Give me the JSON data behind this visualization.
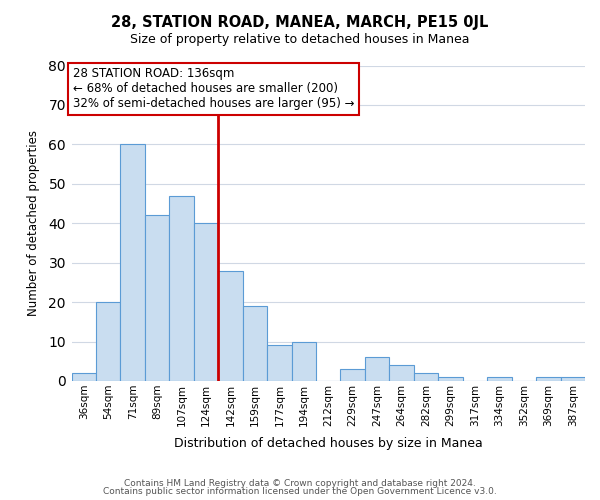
{
  "title": "28, STATION ROAD, MANEA, MARCH, PE15 0JL",
  "subtitle": "Size of property relative to detached houses in Manea",
  "xlabel": "Distribution of detached houses by size in Manea",
  "ylabel": "Number of detached properties",
  "bar_labels": [
    "36sqm",
    "54sqm",
    "71sqm",
    "89sqm",
    "107sqm",
    "124sqm",
    "142sqm",
    "159sqm",
    "177sqm",
    "194sqm",
    "212sqm",
    "229sqm",
    "247sqm",
    "264sqm",
    "282sqm",
    "299sqm",
    "317sqm",
    "334sqm",
    "352sqm",
    "369sqm",
    "387sqm"
  ],
  "bar_values": [
    2,
    20,
    60,
    42,
    47,
    40,
    28,
    19,
    9,
    10,
    0,
    3,
    6,
    4,
    2,
    1,
    0,
    1,
    0,
    1,
    1
  ],
  "bar_color": "#c9ddf0",
  "bar_edge_color": "#5b9bd5",
  "vline_color": "#cc0000",
  "annotation_line0": "28 STATION ROAD: 136sqm",
  "annotation_line1": "← 68% of detached houses are smaller (200)",
  "annotation_line2": "32% of semi-detached houses are larger (95) →",
  "annotation_box_color": "#ffffff",
  "annotation_box_edge": "#cc0000",
  "ylim": [
    0,
    80
  ],
  "yticks": [
    0,
    10,
    20,
    30,
    40,
    50,
    60,
    70,
    80
  ],
  "footer_line1": "Contains HM Land Registry data © Crown copyright and database right 2024.",
  "footer_line2": "Contains public sector information licensed under the Open Government Licence v3.0.",
  "bg_color": "#ffffff",
  "grid_color": "#d0d8e4"
}
